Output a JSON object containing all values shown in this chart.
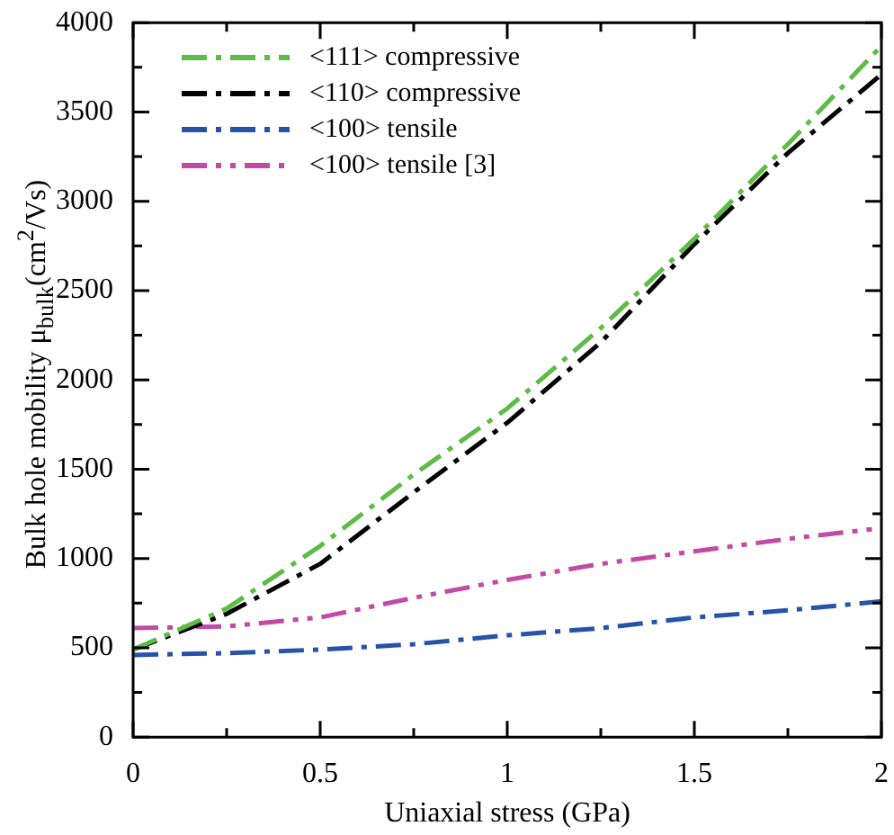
{
  "chart_data": {
    "type": "line",
    "xlabel": "Uniaxial stress (GPa)",
    "ylabel": "Bulk hole mobility μ$_{bulk}$(cm$^{2}$/Vs)",
    "x": [
      0,
      0.25,
      0.5,
      0.75,
      1,
      1.25,
      1.5,
      1.75,
      2
    ],
    "series": [
      {
        "name": "<111> compressive",
        "color": "#5dbb46",
        "line_style": "dashed",
        "values": [
          490,
          720,
          1070,
          1470,
          1840,
          2290,
          2790,
          3320,
          3870
        ]
      },
      {
        "name": "<110> compressive",
        "color": "#000000",
        "line_style": "dashed",
        "values": [
          490,
          690,
          970,
          1370,
          1760,
          2210,
          2760,
          3270,
          3710
        ]
      },
      {
        "name": "<100> tensile",
        "color": "#2653a8",
        "line_style": "dashed",
        "values": [
          460,
          470,
          490,
          520,
          570,
          610,
          670,
          710,
          760
        ]
      },
      {
        "name": "<100> tensile [3]",
        "color": "#c14aa5",
        "line_style": "dotted",
        "values": [
          610,
          620,
          670,
          780,
          880,
          970,
          1040,
          1110,
          1170
        ]
      }
    ],
    "xlim": [
      0,
      2
    ],
    "xticks": [
      0,
      {
        "value": 0.25,
        "label": null
      },
      0.5,
      {
        "value": 0.75,
        "label": null
      },
      1,
      {
        "value": 1.25,
        "label": null
      },
      1.5,
      {
        "value": 1.75,
        "label": null
      },
      2
    ],
    "ylim": [
      0,
      4000
    ],
    "yticks": [
      0,
      {
        "value": 250,
        "label": null
      },
      500,
      {
        "value": 750,
        "label": null
      },
      1000,
      {
        "value": 1250,
        "label": null
      },
      1500,
      {
        "value": 1750,
        "label": null
      },
      2000,
      {
        "value": 2250,
        "label": null
      },
      2500,
      {
        "value": 2750,
        "label": null
      },
      3000,
      {
        "value": 3250,
        "label": null
      },
      3500,
      {
        "value": 3750,
        "label": null
      },
      4000
    ],
    "grid": false,
    "legend": "top left",
    "marker": "none"
  }
}
